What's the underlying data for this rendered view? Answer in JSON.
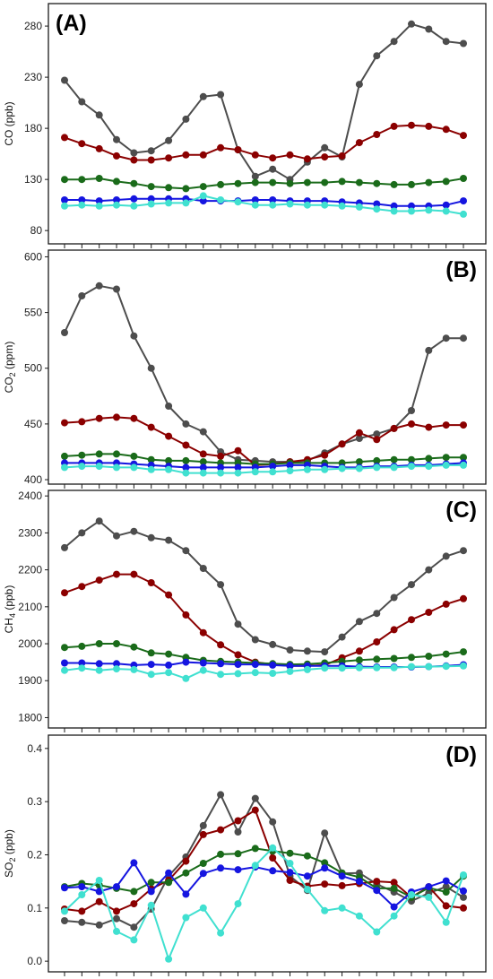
{
  "chart_data": [
    {
      "type": "line",
      "panel_label": "(A)",
      "ylabel": "CO (ppb)",
      "ylabel_base": "CO",
      "ylabel_sub": "",
      "ylabel_unit": "(ppb)",
      "yticks": [
        80,
        130,
        180,
        230,
        280
      ],
      "ylim": [
        67,
        302
      ],
      "x": [
        1,
        2,
        3,
        4,
        5,
        6,
        7,
        8,
        9,
        10,
        11,
        12,
        13,
        14,
        15,
        16,
        17,
        18,
        19,
        20,
        21,
        22,
        23,
        24
      ],
      "series": [
        {
          "color": "#4d4d4d",
          "values": [
            227,
            206,
            193,
            169,
            156,
            158,
            168,
            189,
            211,
            213,
            159,
            133,
            140,
            130,
            147,
            161,
            152,
            223,
            251,
            265,
            282,
            277,
            265,
            263
          ]
        },
        {
          "color": "#8b0000",
          "values": [
            171,
            165,
            160,
            153,
            149,
            149,
            151,
            154,
            154,
            161,
            159,
            154,
            151,
            154,
            150,
            152,
            153,
            166,
            174,
            182,
            183,
            182,
            179,
            173
          ]
        },
        {
          "color": "#1a6b1a",
          "values": [
            130,
            130,
            131,
            128,
            126,
            123,
            122,
            121,
            123,
            125,
            126,
            127,
            127,
            126,
            127,
            127,
            128,
            127,
            126,
            125,
            125,
            127,
            128,
            131
          ]
        },
        {
          "color": "#1515e0",
          "values": [
            110,
            110,
            109,
            110,
            111,
            111,
            111,
            111,
            109,
            109,
            109,
            110,
            110,
            109,
            109,
            109,
            108,
            107,
            106,
            104,
            104,
            104,
            105,
            109
          ]
        },
        {
          "color": "#40e0d0",
          "values": [
            104,
            105,
            104,
            105,
            104,
            106,
            107,
            107,
            114,
            110,
            108,
            105,
            105,
            106,
            105,
            105,
            104,
            103,
            101,
            99,
            99,
            100,
            99,
            96
          ]
        }
      ]
    },
    {
      "type": "line",
      "panel_label": "(B)",
      "ylabel": "CO2 (ppm)",
      "ylabel_base": "CO",
      "ylabel_sub": "2",
      "ylabel_unit": "(ppm)",
      "yticks": [
        400,
        450,
        500,
        550,
        600
      ],
      "ylim": [
        396,
        606
      ],
      "x": [
        1,
        2,
        3,
        4,
        5,
        6,
        7,
        8,
        9,
        10,
        11,
        12,
        13,
        14,
        15,
        16,
        17,
        18,
        19,
        20,
        21,
        22,
        23,
        24
      ],
      "series": [
        {
          "color": "#4d4d4d",
          "values": [
            532,
            565,
            574,
            571,
            529,
            500,
            466,
            450,
            443,
            425,
            418,
            417,
            416,
            416,
            417,
            424,
            432,
            437,
            441,
            446,
            462,
            516,
            527,
            527
          ]
        },
        {
          "color": "#8b0000",
          "values": [
            451,
            452,
            455,
            456,
            455,
            447,
            439,
            431,
            423,
            421,
            426,
            413,
            414,
            416,
            418,
            422,
            432,
            442,
            436,
            446,
            450,
            447,
            449,
            449
          ]
        },
        {
          "color": "#1a6b1a",
          "values": [
            421,
            422,
            423,
            423,
            421,
            418,
            417,
            417,
            416,
            415,
            415,
            414,
            414,
            415,
            415,
            415,
            415,
            416,
            417,
            418,
            418,
            419,
            420,
            420
          ]
        },
        {
          "color": "#1515e0",
          "values": [
            415,
            415,
            415,
            415,
            414,
            413,
            412,
            411,
            411,
            411,
            411,
            411,
            412,
            413,
            413,
            412,
            411,
            411,
            412,
            412,
            413,
            413,
            414,
            415
          ]
        },
        {
          "color": "#40e0d0",
          "values": [
            411,
            412,
            412,
            411,
            411,
            409,
            409,
            406,
            406,
            406,
            406,
            407,
            407,
            408,
            409,
            409,
            410,
            410,
            411,
            411,
            412,
            412,
            413,
            413
          ]
        }
      ]
    },
    {
      "type": "line",
      "panel_label": "(C)",
      "ylabel": "CH4 (ppb)",
      "ylabel_base": "CH",
      "ylabel_sub": "4",
      "ylabel_unit": "(ppb)",
      "yticks": [
        1800,
        1900,
        2000,
        2100,
        2200,
        2300,
        2400
      ],
      "ylim": [
        1772,
        2415
      ],
      "x": [
        1,
        2,
        3,
        4,
        5,
        6,
        7,
        8,
        9,
        10,
        11,
        12,
        13,
        14,
        15,
        16,
        17,
        18,
        19,
        20,
        21,
        22,
        23,
        24
      ],
      "series": [
        {
          "color": "#4d4d4d",
          "values": [
            2260,
            2300,
            2332,
            2292,
            2304,
            2287,
            2280,
            2252,
            2204,
            2160,
            2053,
            2011,
            1998,
            1983,
            1980,
            1978,
            2018,
            2060,
            2082,
            2125,
            2160,
            2200,
            2237,
            2252
          ]
        },
        {
          "color": "#8b0000",
          "values": [
            2138,
            2155,
            2172,
            2188,
            2188,
            2165,
            2132,
            2078,
            2030,
            1997,
            1970,
            1950,
            1944,
            1940,
            1940,
            1942,
            1962,
            1980,
            2005,
            2038,
            2065,
            2085,
            2107,
            2122
          ]
        },
        {
          "color": "#1a6b1a",
          "values": [
            1990,
            1993,
            2000,
            2000,
            1991,
            1975,
            1972,
            1963,
            1955,
            1952,
            1950,
            1948,
            1946,
            1944,
            1945,
            1948,
            1952,
            1956,
            1958,
            1960,
            1963,
            1966,
            1972,
            1978
          ]
        },
        {
          "color": "#1515e0",
          "values": [
            1948,
            1948,
            1946,
            1946,
            1942,
            1944,
            1942,
            1950,
            1948,
            1946,
            1944,
            1944,
            1942,
            1940,
            1940,
            1940,
            1940,
            1938,
            1937,
            1937,
            1937,
            1938,
            1940,
            1943
          ]
        },
        {
          "color": "#40e0d0",
          "values": [
            1928,
            1934,
            1928,
            1932,
            1930,
            1917,
            1922,
            1906,
            1928,
            1917,
            1919,
            1922,
            1920,
            1925,
            1930,
            1934,
            1934,
            1935,
            1935,
            1935,
            1938,
            1938,
            1939,
            1940
          ]
        }
      ]
    },
    {
      "type": "line",
      "panel_label": "(D)",
      "ylabel": "SO2 (ppb)",
      "ylabel_base": "SO",
      "ylabel_sub": "2",
      "ylabel_unit": "(ppb)",
      "yticks": [
        0.0,
        0.1,
        0.2,
        0.3,
        0.4
      ],
      "ylim": [
        -0.02,
        0.425
      ],
      "x": [
        1,
        2,
        3,
        4,
        5,
        6,
        7,
        8,
        9,
        10,
        11,
        12,
        13,
        14,
        15,
        16,
        17,
        18,
        19,
        20,
        21,
        22,
        23,
        24
      ],
      "series": [
        {
          "color": "#4d4d4d",
          "values": [
            0.076,
            0.073,
            0.068,
            0.08,
            0.064,
            0.098,
            0.16,
            0.196,
            0.255,
            0.313,
            0.243,
            0.306,
            0.262,
            0.16,
            0.133,
            0.241,
            0.165,
            0.166,
            0.145,
            0.13,
            0.113,
            0.128,
            0.14,
            0.12
          ]
        },
        {
          "color": "#8b0000",
          "values": [
            0.098,
            0.094,
            0.112,
            0.094,
            0.108,
            0.136,
            0.152,
            0.188,
            0.238,
            0.247,
            0.264,
            0.284,
            0.194,
            0.152,
            0.141,
            0.145,
            0.142,
            0.146,
            0.15,
            0.148,
            0.12,
            0.14,
            0.104,
            0.1
          ]
        },
        {
          "color": "#1a6b1a",
          "values": [
            0.14,
            0.146,
            0.143,
            0.137,
            0.131,
            0.148,
            0.148,
            0.166,
            0.184,
            0.201,
            0.202,
            0.212,
            0.207,
            0.203,
            0.198,
            0.185,
            0.166,
            0.158,
            0.137,
            0.137,
            0.12,
            0.138,
            0.13,
            0.16
          ]
        },
        {
          "color": "#1515e0",
          "values": [
            0.138,
            0.14,
            0.131,
            0.14,
            0.185,
            0.131,
            0.166,
            0.126,
            0.165,
            0.175,
            0.172,
            0.177,
            0.17,
            0.167,
            0.16,
            0.175,
            0.16,
            0.15,
            0.133,
            0.102,
            0.13,
            0.14,
            0.151,
            0.132
          ]
        },
        {
          "color": "#40e0d0",
          "values": [
            0.094,
            0.125,
            0.152,
            0.056,
            0.04,
            0.105,
            0.004,
            0.082,
            0.1,
            0.053,
            0.108,
            0.18,
            0.213,
            0.184,
            0.135,
            0.095,
            0.1,
            0.085,
            0.055,
            0.085,
            0.125,
            0.12,
            0.073,
            0.162
          ]
        }
      ]
    }
  ]
}
